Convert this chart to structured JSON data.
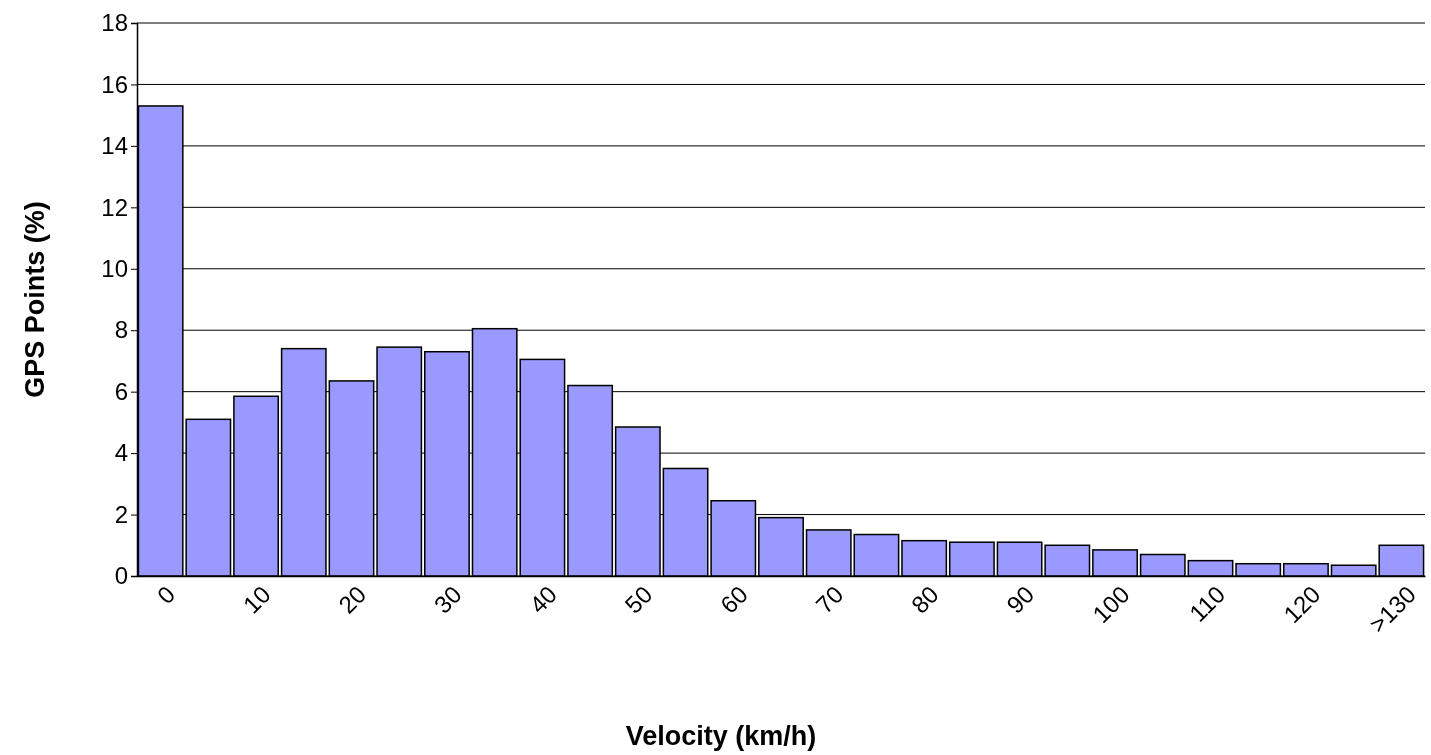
{
  "chart_data": {
    "type": "bar",
    "xlabel": "Velocity (km/h)",
    "ylabel": "GPS Points (%)",
    "categories": [
      "0",
      null,
      "10",
      null,
      "20",
      null,
      "30",
      null,
      "40",
      null,
      "50",
      null,
      "60",
      null,
      "70",
      null,
      "80",
      null,
      "90",
      null,
      "100",
      null,
      "110",
      null,
      "120",
      null,
      ">130"
    ],
    "values": [
      15.3,
      5.1,
      5.85,
      7.4,
      6.35,
      7.45,
      7.3,
      8.05,
      7.05,
      6.2,
      4.85,
      3.5,
      2.45,
      1.9,
      1.5,
      1.35,
      1.15,
      1.1,
      1.1,
      1.0,
      0.85,
      0.7,
      0.5,
      0.4,
      0.4,
      0.35,
      1.0
    ],
    "color": "#9999ff",
    "ylim": [
      0,
      18
    ],
    "yticks": [
      0,
      2,
      4,
      6,
      8,
      10,
      12,
      14,
      16,
      18
    ],
    "grid": "y"
  }
}
